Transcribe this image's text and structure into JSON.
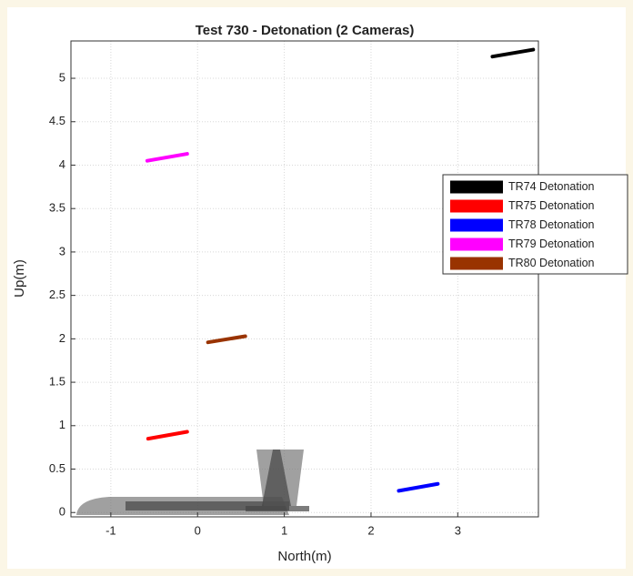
{
  "chart_data": {
    "type": "line",
    "title": "Test 730 - Detonation (2 Cameras)",
    "x_label": "North(m)",
    "y_label": "Up(m)",
    "xlim": [
      -1.46,
      3.93
    ],
    "ylim": [
      -0.05,
      5.43
    ],
    "xticks": [
      -1,
      0,
      1,
      2,
      3
    ],
    "yticks": [
      0,
      0.5,
      1,
      1.5,
      2,
      2.5,
      3,
      3.5,
      4,
      4.5,
      5
    ],
    "grid": true,
    "legend": "east",
    "series": [
      {
        "name": "TR74 Detonation",
        "color": "#000000",
        "x": [
          3.4,
          3.87
        ],
        "values": [
          5.25,
          5.33
        ]
      },
      {
        "name": "TR75 Detonation",
        "color": "#ff0000",
        "x": [
          -0.57,
          -0.12
        ],
        "values": [
          0.85,
          0.93
        ]
      },
      {
        "name": "TR78 Detonation",
        "color": "#0000ff",
        "x": [
          2.32,
          2.77
        ],
        "values": [
          0.25,
          0.33
        ]
      },
      {
        "name": "TR79 Detonation",
        "color": "#ff00ff",
        "x": [
          -0.58,
          -0.12
        ],
        "values": [
          4.05,
          4.13
        ]
      },
      {
        "name": "TR80 Detonation",
        "color": "#993300",
        "x": [
          0.12,
          0.55
        ],
        "values": [
          1.96,
          2.03
        ]
      }
    ]
  }
}
